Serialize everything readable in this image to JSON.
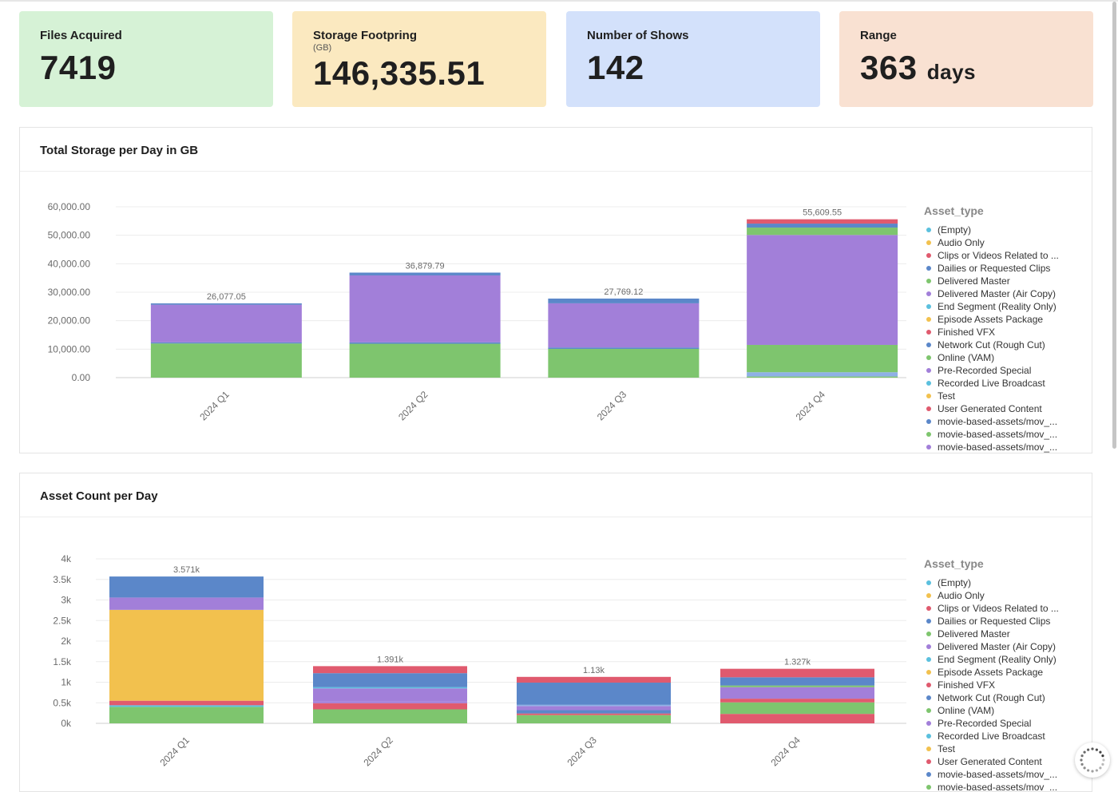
{
  "kpis": [
    {
      "label": "Files Acquired",
      "sub": "",
      "value": "7419",
      "unit": "",
      "bg": "#d6f2d6"
    },
    {
      "label": "Storage Footpring",
      "sub": "(GB)",
      "value": "146,335.51",
      "unit": "",
      "bg": "#fbe9c0"
    },
    {
      "label": "Number of Shows",
      "sub": "",
      "value": "142",
      "unit": "",
      "bg": "#d3e1fb"
    },
    {
      "label": "Range",
      "sub": "",
      "value": "363",
      "unit": "days",
      "bg": "#f9e1d2"
    }
  ],
  "legend_title": "Asset_type",
  "legend_items": [
    {
      "label": "(Empty)",
      "color": "#5bc0de"
    },
    {
      "label": "Audio Only",
      "color": "#f2c14e"
    },
    {
      "label": "Clips or Videos Related to ...",
      "color": "#e05a6e"
    },
    {
      "label": "Dailies or Requested Clips",
      "color": "#5b87c9"
    },
    {
      "label": "Delivered Master",
      "color": "#7ec56e"
    },
    {
      "label": "Delivered Master (Air Copy)",
      "color": "#a27fd9"
    },
    {
      "label": "End Segment (Reality Only)",
      "color": "#5bc0de"
    },
    {
      "label": "Episode Assets Package",
      "color": "#f2c14e"
    },
    {
      "label": "Finished VFX",
      "color": "#e05a6e"
    },
    {
      "label": "Network Cut (Rough Cut)",
      "color": "#5b87c9"
    },
    {
      "label": "Online (VAM)",
      "color": "#7ec56e"
    },
    {
      "label": "Pre-Recorded Special",
      "color": "#a27fd9"
    },
    {
      "label": "Recorded Live Broadcast",
      "color": "#5bc0de"
    },
    {
      "label": "Test",
      "color": "#f2c14e"
    },
    {
      "label": "User Generated Content",
      "color": "#e05a6e"
    },
    {
      "label": "movie-based-assets/mov_...",
      "color": "#5b87c9"
    },
    {
      "label": "movie-based-assets/mov_...",
      "color": "#7ec56e"
    },
    {
      "label": "movie-based-assets/mov_...",
      "color": "#a27fd9"
    }
  ],
  "colors": {
    "green": "#7ec56e",
    "purple": "#a27fd9",
    "blue": "#5b87c9",
    "red": "#e05a6e",
    "yellow": "#f2c14e",
    "lightblue": "#8fb0e6",
    "cyan": "#5bc0de"
  },
  "chart_data": [
    {
      "type": "bar",
      "title": "Total Storage per Day in GB",
      "categories": [
        "2024 Q1",
        "2024 Q2",
        "2024 Q3",
        "2024 Q4"
      ],
      "y_ticks": [
        "60,000.00",
        "50,000.00",
        "40,000.00",
        "30,000.00",
        "20,000.00",
        "10,000.00",
        "0.00"
      ],
      "ylim": [
        0,
        60000
      ],
      "totals": [
        "26,077.05",
        "36,879.79",
        "27,769.12",
        "55,609.55"
      ],
      "stacked": true,
      "segments": [
        [
          {
            "value": 12000,
            "color": "green"
          },
          {
            "value": 400,
            "color": "blue"
          },
          {
            "value": 13200,
            "color": "purple"
          },
          {
            "value": 477,
            "color": "blue"
          }
        ],
        [
          {
            "value": 11900,
            "color": "green"
          },
          {
            "value": 500,
            "color": "blue"
          },
          {
            "value": 23500,
            "color": "purple"
          },
          {
            "value": 980,
            "color": "blue"
          }
        ],
        [
          {
            "value": 10100,
            "color": "green"
          },
          {
            "value": 500,
            "color": "blue"
          },
          {
            "value": 15500,
            "color": "purple"
          },
          {
            "value": 1669,
            "color": "blue"
          }
        ],
        [
          {
            "value": 400,
            "color": "green"
          },
          {
            "value": 1500,
            "color": "lightblue"
          },
          {
            "value": 9600,
            "color": "green"
          },
          {
            "value": 38600,
            "color": "purple"
          },
          {
            "value": 2600,
            "color": "green"
          },
          {
            "value": 1400,
            "color": "blue"
          },
          {
            "value": 1510,
            "color": "red"
          }
        ]
      ]
    },
    {
      "type": "bar",
      "title": "Asset Count per Day",
      "categories": [
        "2024 Q1",
        "2024 Q2",
        "2024 Q3",
        "2024 Q4"
      ],
      "y_ticks": [
        "4k",
        "3.5k",
        "3k",
        "2.5k",
        "2k",
        "1.5k",
        "1k",
        "0.5k",
        "0k"
      ],
      "ylim": [
        0,
        4000
      ],
      "totals": [
        "3.571k",
        "1.391k",
        "1.13k",
        "1.327k"
      ],
      "stacked": true,
      "segments": [
        [
          {
            "value": 400,
            "color": "green"
          },
          {
            "value": 40,
            "color": "cyan"
          },
          {
            "value": 110,
            "color": "red"
          },
          {
            "value": 2210,
            "color": "yellow"
          },
          {
            "value": 300,
            "color": "purple"
          },
          {
            "value": 511,
            "color": "blue"
          }
        ],
        [
          {
            "value": 340,
            "color": "green"
          },
          {
            "value": 150,
            "color": "red"
          },
          {
            "value": 40,
            "color": "purple"
          },
          {
            "value": 320,
            "color": "purple"
          },
          {
            "value": 30,
            "color": "cyan"
          },
          {
            "value": 340,
            "color": "blue"
          },
          {
            "value": 171,
            "color": "red"
          }
        ],
        [
          {
            "value": 200,
            "color": "green"
          },
          {
            "value": 40,
            "color": "red"
          },
          {
            "value": 80,
            "color": "blue"
          },
          {
            "value": 100,
            "color": "purple"
          },
          {
            "value": 30,
            "color": "lightblue"
          },
          {
            "value": 540,
            "color": "blue"
          },
          {
            "value": 140,
            "color": "red"
          }
        ],
        [
          {
            "value": 230,
            "color": "red"
          },
          {
            "value": 280,
            "color": "green"
          },
          {
            "value": 90,
            "color": "red"
          },
          {
            "value": 280,
            "color": "purple"
          },
          {
            "value": 40,
            "color": "green"
          },
          {
            "value": 200,
            "color": "blue"
          },
          {
            "value": 207,
            "color": "red"
          }
        ]
      ]
    }
  ]
}
